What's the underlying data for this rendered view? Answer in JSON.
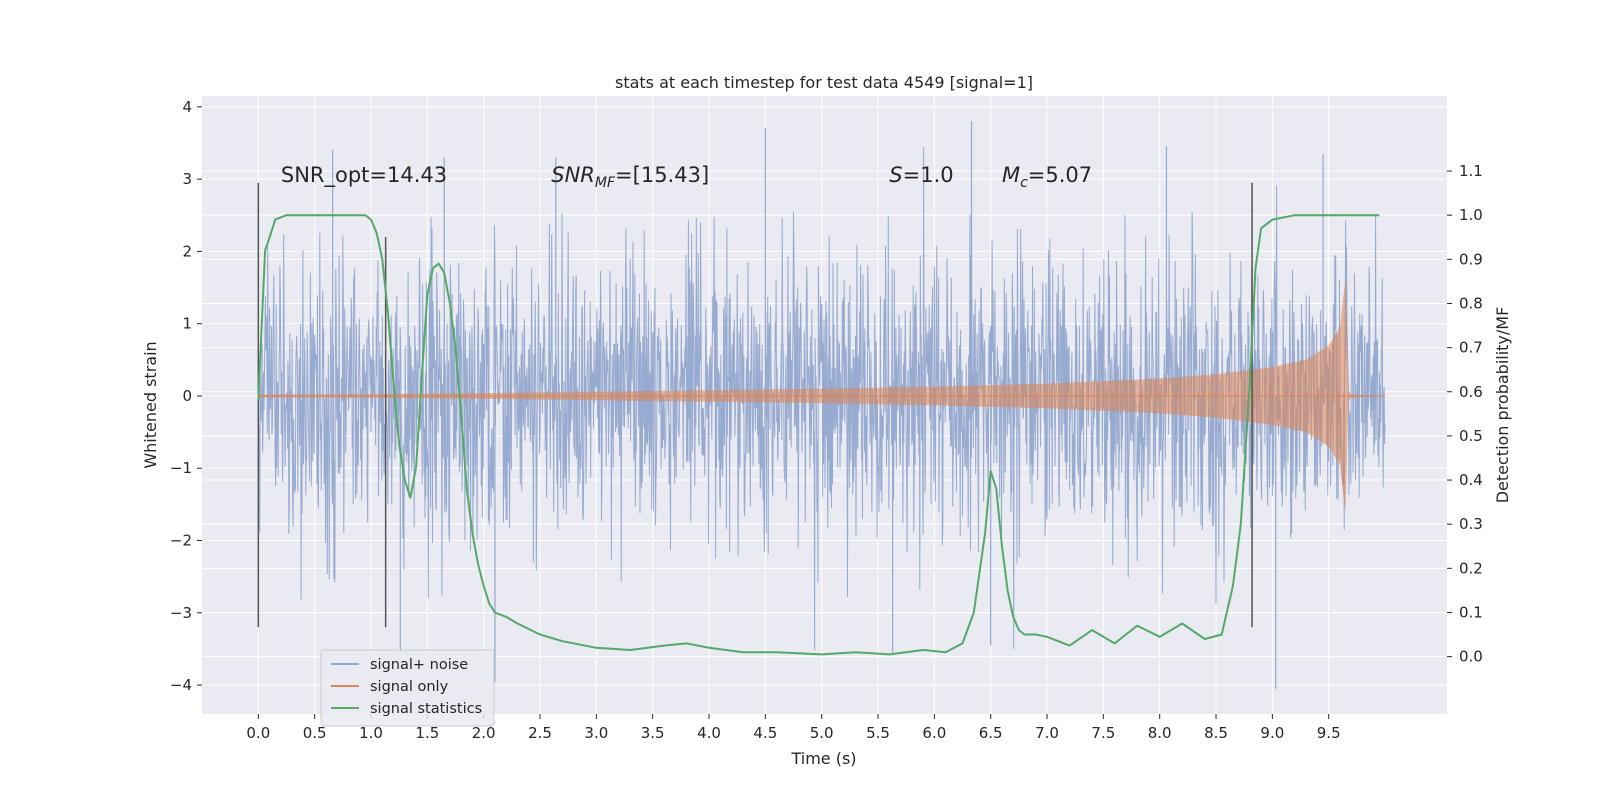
{
  "chart_data": {
    "type": "line",
    "title": "stats at each timestep for test data 4549 [signal=1]",
    "xlabel": "Time (s)",
    "ylabel": "Whitened strain",
    "ylabel_right": "Detection probability/MF",
    "xlim": [
      -0.5,
      10.55
    ],
    "ylim": [
      -4.4,
      4.15
    ],
    "ylim_right": [
      -0.13,
      1.27
    ],
    "grid": true,
    "legend_position": "lower-left",
    "x_ticks": [
      0.0,
      0.5,
      1.0,
      1.5,
      2.0,
      2.5,
      3.0,
      3.5,
      4.0,
      4.5,
      5.0,
      5.5,
      6.0,
      6.5,
      7.0,
      7.5,
      8.0,
      8.5,
      9.0,
      9.5
    ],
    "x_tick_labels": [
      "0.0",
      "0.5",
      "1.0",
      "1.5",
      "2.0",
      "2.5",
      "3.0",
      "3.5",
      "4.0",
      "4.5",
      "5.0",
      "5.5",
      "6.0",
      "6.5",
      "7.0",
      "7.5",
      "8.0",
      "8.5",
      "9.0",
      "9.5"
    ],
    "y_ticks": [
      -4,
      -3,
      -2,
      -1,
      0,
      1,
      2,
      3,
      4
    ],
    "y_tick_labels": [
      "−4",
      "−3",
      "−2",
      "−1",
      "0",
      "1",
      "2",
      "3",
      "4"
    ],
    "y_right_ticks": [
      0.0,
      0.1,
      0.2,
      0.3,
      0.4,
      0.5,
      0.6,
      0.7,
      0.8,
      0.9,
      1.0,
      1.1
    ],
    "y_right_tick_labels": [
      "0.0",
      "0.1",
      "0.2",
      "0.3",
      "0.4",
      "0.5",
      "0.6",
      "0.7",
      "0.8",
      "0.9",
      "1.0",
      "1.1"
    ],
    "annotations": [
      {
        "label": "SNR_opt=14.43",
        "x": 0.2,
        "y": 3.0
      },
      {
        "label": "SNR",
        "sub": "MF",
        "suffix": "=[15.43]",
        "x": 2.6,
        "y": 3.0
      },
      {
        "label": "S",
        "suffix": "=1.0",
        "x": 5.6,
        "y": 3.0
      },
      {
        "label": "M",
        "sub": "c",
        "suffix": "=5.07",
        "x": 6.6,
        "y": 3.0
      }
    ],
    "vertical_markers": [
      {
        "x": 0.0,
        "y_range": [
          -3.2,
          2.95
        ]
      },
      {
        "x": 1.13,
        "y_range": [
          -3.2,
          2.2
        ]
      },
      {
        "x": 8.82,
        "y_range": [
          -3.2,
          2.95
        ]
      }
    ],
    "series": [
      {
        "name": "signal+ noise",
        "color": "#92a7cd",
        "axis": "left",
        "description": "dense whitened strain noise plus signal, x 0.0 to 10.0",
        "envelope_x": [
          0.0,
          10.0
        ],
        "spikes": [
          {
            "x": 1.26,
            "y": -3.55
          },
          {
            "x": 2.1,
            "y": -3.95
          },
          {
            "x": 4.5,
            "y": 3.7
          },
          {
            "x": 6.33,
            "y": 3.8
          },
          {
            "x": 6.5,
            "y": -3.45
          },
          {
            "x": 9.03,
            "y": -4.05
          },
          {
            "x": 9.45,
            "y": 3.35
          },
          {
            "x": 5.63,
            "y": -3.55
          },
          {
            "x": 1.65,
            "y": 3.3
          },
          {
            "x": 8.06,
            "y": 3.45
          },
          {
            "x": 2.64,
            "y": 3.3
          },
          {
            "x": 0.66,
            "y": 3.4
          }
        ]
      },
      {
        "name": "signal only",
        "color": "#dd8452",
        "axis": "left",
        "description": "chirp signal growing in amplitude, merger near x=9.65",
        "amplitude_points": [
          {
            "x": 0.0,
            "amp": 0.02
          },
          {
            "x": 1.0,
            "amp": 0.025
          },
          {
            "x": 2.0,
            "amp": 0.04
          },
          {
            "x": 3.0,
            "amp": 0.06
          },
          {
            "x": 4.0,
            "amp": 0.08
          },
          {
            "x": 5.0,
            "amp": 0.1
          },
          {
            "x": 6.0,
            "amp": 0.13
          },
          {
            "x": 7.0,
            "amp": 0.17
          },
          {
            "x": 8.0,
            "amp": 0.24
          },
          {
            "x": 8.5,
            "amp": 0.3
          },
          {
            "x": 9.0,
            "amp": 0.4
          },
          {
            "x": 9.3,
            "amp": 0.5
          },
          {
            "x": 9.5,
            "amp": 0.7
          },
          {
            "x": 9.6,
            "amp": 0.95
          },
          {
            "x": 9.63,
            "amp": 1.4
          },
          {
            "x": 9.65,
            "amp": 1.6
          },
          {
            "x": 9.67,
            "amp": 0.1
          },
          {
            "x": 9.7,
            "amp": 0.02
          },
          {
            "x": 10.0,
            "amp": 0.0
          }
        ]
      },
      {
        "name": "signal statistics",
        "color": "#55a868",
        "axis": "right",
        "x": [
          0.0,
          0.06,
          0.1,
          0.15,
          0.25,
          0.4,
          0.6,
          0.8,
          0.95,
          1.0,
          1.05,
          1.1,
          1.15,
          1.2,
          1.25,
          1.3,
          1.35,
          1.4,
          1.45,
          1.5,
          1.55,
          1.6,
          1.65,
          1.7,
          1.75,
          1.8,
          1.85,
          1.9,
          1.95,
          2.0,
          2.05,
          2.1,
          2.15,
          2.2,
          2.3,
          2.5,
          2.7,
          3.0,
          3.3,
          3.6,
          3.8,
          4.0,
          4.3,
          4.6,
          5.0,
          5.3,
          5.6,
          5.9,
          6.1,
          6.25,
          6.35,
          6.45,
          6.5,
          6.55,
          6.6,
          6.65,
          6.7,
          6.75,
          6.8,
          6.9,
          7.0,
          7.2,
          7.4,
          7.6,
          7.8,
          8.0,
          8.2,
          8.4,
          8.55,
          8.65,
          8.72,
          8.8,
          8.85,
          8.9,
          9.0,
          9.2,
          9.5,
          9.7,
          9.95
        ],
        "y": [
          0.58,
          0.92,
          0.95,
          0.99,
          1.0,
          1.0,
          1.0,
          1.0,
          1.0,
          0.99,
          0.96,
          0.9,
          0.78,
          0.62,
          0.48,
          0.4,
          0.36,
          0.43,
          0.63,
          0.82,
          0.88,
          0.89,
          0.87,
          0.8,
          0.7,
          0.55,
          0.38,
          0.28,
          0.21,
          0.16,
          0.12,
          0.1,
          0.095,
          0.09,
          0.075,
          0.05,
          0.035,
          0.02,
          0.015,
          0.025,
          0.03,
          0.02,
          0.01,
          0.01,
          0.005,
          0.01,
          0.005,
          0.015,
          0.01,
          0.03,
          0.1,
          0.28,
          0.42,
          0.38,
          0.25,
          0.15,
          0.09,
          0.06,
          0.05,
          0.05,
          0.045,
          0.025,
          0.06,
          0.03,
          0.07,
          0.045,
          0.075,
          0.04,
          0.05,
          0.16,
          0.3,
          0.62,
          0.88,
          0.97,
          0.99,
          1.0,
          1.0,
          1.0,
          1.0
        ]
      }
    ]
  }
}
